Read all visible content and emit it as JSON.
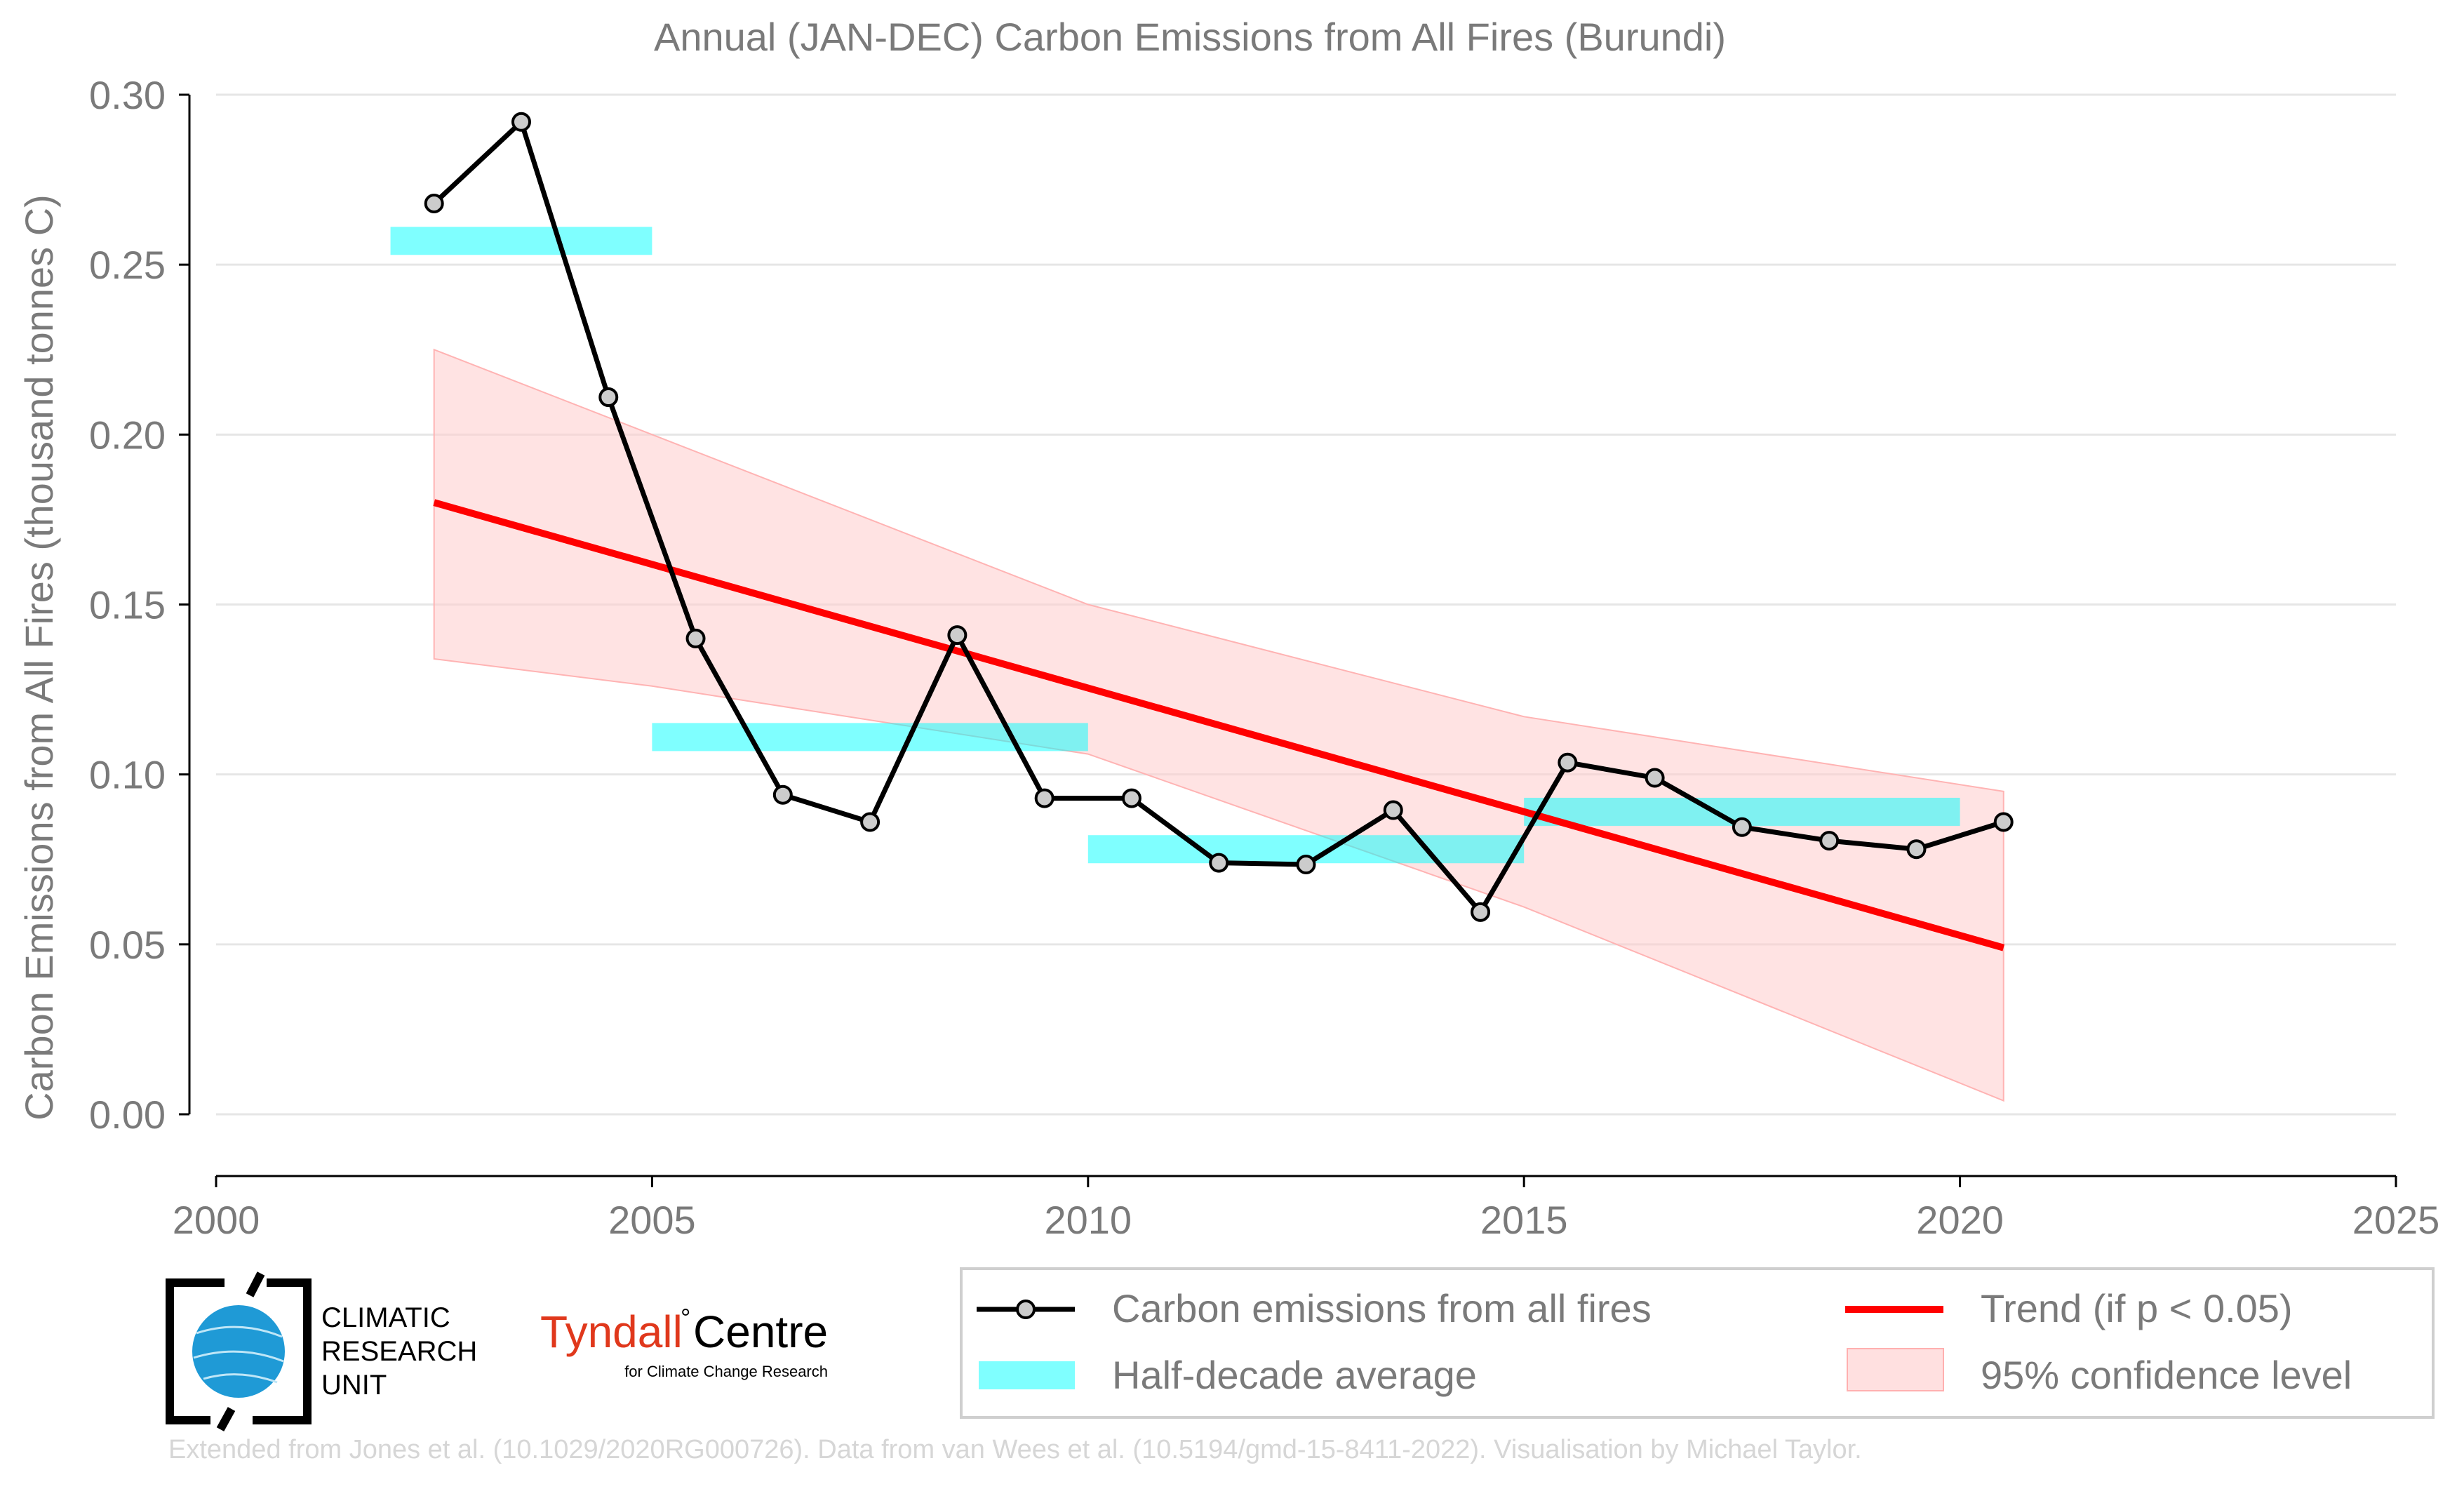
{
  "chart_data": {
    "type": "line",
    "title": "Annual (JAN-DEC) Carbon Emissions from All Fires (Burundi)",
    "ylabel": "Carbon Emissions from All Fires (thousand tonnes C)",
    "xlabel": "",
    "xlim": [
      2000,
      2025
    ],
    "ylim": [
      0.0,
      0.3
    ],
    "x_ticks": [
      "2000",
      "2005",
      "2010",
      "2015",
      "2020",
      "2025"
    ],
    "y_ticks": [
      "0.00",
      "0.05",
      "0.10",
      "0.15",
      "0.20",
      "0.25",
      "0.30"
    ],
    "grid": true,
    "series": [
      {
        "name": "Carbon emissions from all fires",
        "color": "#000000",
        "marker_fill": "#cccccc",
        "x": [
          2002.5,
          2003.5,
          2004.5,
          2005.5,
          2006.5,
          2007.5,
          2008.5,
          2009.5,
          2010.5,
          2011.5,
          2012.5,
          2013.5,
          2014.5,
          2015.5,
          2016.5,
          2017.5,
          2018.5,
          2019.5,
          2020.5
        ],
        "y": [
          0.268,
          0.292,
          0.211,
          0.14,
          0.094,
          0.086,
          0.141,
          0.093,
          0.093,
          0.074,
          0.0735,
          0.0895,
          0.0595,
          0.1035,
          0.099,
          0.0845,
          0.0805,
          0.078,
          0.086
        ]
      }
    ],
    "half_decade_average": {
      "name": "Half-decade average",
      "color": "#00ffff",
      "periods": [
        {
          "start": 2002,
          "end": 2005,
          "value": 0.257
        },
        {
          "start": 2005,
          "end": 2010,
          "value": 0.111
        },
        {
          "start": 2010,
          "end": 2015,
          "value": 0.078
        },
        {
          "start": 2015,
          "end": 2020,
          "value": 0.089
        }
      ]
    },
    "trend": {
      "name": "Trend (if p < 0.05)",
      "color": "#ff0000",
      "x": [
        2002.5,
        2020.5
      ],
      "y": [
        0.18,
        0.049
      ]
    },
    "confidence": {
      "name": "95% confidence level",
      "color": "#ffcccc",
      "x": [
        2002.5,
        2005,
        2010,
        2015,
        2020.5
      ],
      "upper": [
        0.225,
        0.2,
        0.15,
        0.117,
        0.095
      ],
      "lower": [
        0.134,
        0.126,
        0.106,
        0.061,
        0.004
      ]
    },
    "legend_position": "bottom-right"
  },
  "logos": {
    "cru": {
      "line1": "CLIMATIC",
      "line2": "RESEARCH",
      "line3": "UNIT"
    },
    "tyndall": {
      "name": "Tyndall",
      "degree": "°",
      "name2": "Centre",
      "subtitle": "for Climate Change Research"
    }
  },
  "credit": "Extended from Jones et al. (10.1029/2020RG000726). Data from van Wees et al. (10.5194/gmd-15-8411-2022). Visualisation by Michael Taylor."
}
